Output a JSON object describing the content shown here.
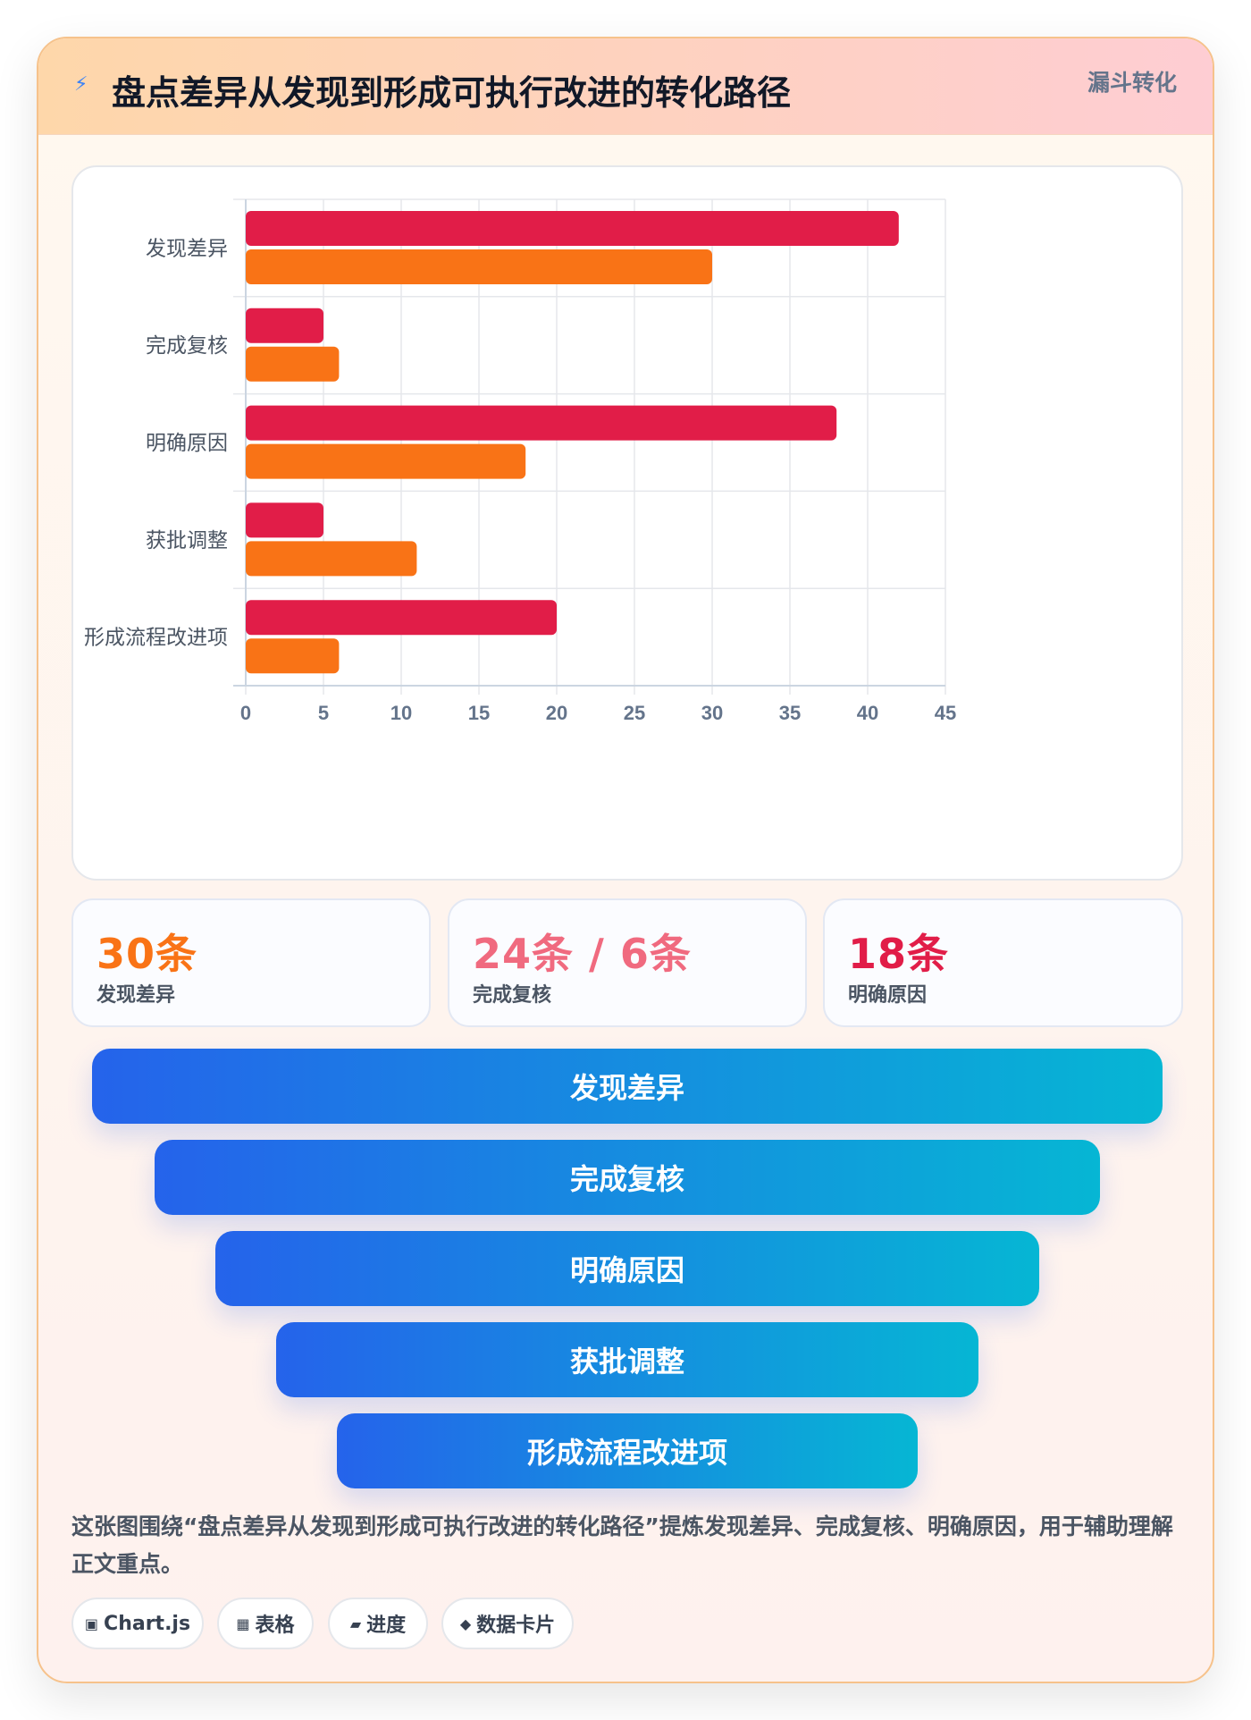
{
  "header": {
    "title": "盘点差异从发现到形成可执行改进的转化路径",
    "tag": "漏斗转化"
  },
  "chart_data": {
    "type": "bar",
    "orientation": "horizontal",
    "categories": [
      "发现差异",
      "完成复核",
      "明确原因",
      "获批调整",
      "形成流程改进项"
    ],
    "series": [
      {
        "color": "#e11d48",
        "values": [
          42,
          5,
          38,
          5,
          20
        ]
      },
      {
        "color": "#f97316",
        "values": [
          30,
          6,
          18,
          11,
          6
        ]
      }
    ],
    "xlim": [
      0,
      45
    ],
    "xticks": [
      0,
      5,
      10,
      15,
      20,
      25,
      30,
      35,
      40,
      45
    ],
    "grid": true,
    "legend": "none"
  },
  "stats": [
    {
      "value": "30条",
      "label": "发现差异",
      "color": "#f97316"
    },
    {
      "value": "24条 / 6条",
      "label": "完成复核",
      "color": "#f06a7f"
    },
    {
      "value": "18条",
      "label": "明确原因",
      "color": "#e11d48"
    }
  ],
  "funnel": [
    "发现差异",
    "完成复核",
    "明确原因",
    "获批调整",
    "形成流程改进项"
  ],
  "summary": "这张图围绕“盘点差异从发现到形成可执行改进的转化路径”提炼发现差异、完成复核、明确原因，用于辅助理解正文重点。",
  "chips": [
    {
      "icon": "▣",
      "label": "Chart.js"
    },
    {
      "icon": "▦",
      "label": "表格"
    },
    {
      "icon": "▰",
      "label": "进度"
    },
    {
      "icon": "◆",
      "label": "数据卡片"
    }
  ]
}
